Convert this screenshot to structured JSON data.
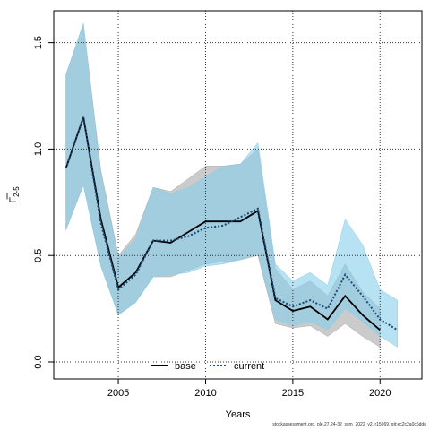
{
  "chart_data": {
    "type": "line",
    "title": "",
    "xlabel": "Years",
    "ylabel_main": "F",
    "ylabel_sub": "2-5",
    "xlim": [
      2001.3,
      2022.4
    ],
    "ylim": [
      -0.08,
      1.65
    ],
    "xticks": [
      2005,
      2010,
      2015,
      2020
    ],
    "yticks": [
      0.0,
      0.5,
      1.0,
      1.5
    ],
    "ytick_labels": [
      "0.0",
      "0.5",
      "1.0",
      "1.5"
    ],
    "grid": true,
    "legend_position": "bottom-left",
    "series": [
      {
        "name": "base",
        "color": "#000000",
        "band_color": "#a9a9a9",
        "line_style": "solid",
        "x": [
          2002,
          2003,
          2004,
          2005,
          2006,
          2007,
          2008,
          2009,
          2010,
          2011,
          2012,
          2013,
          2014,
          2015,
          2016,
          2017,
          2018,
          2019,
          2020
        ],
        "values": [
          0.91,
          1.15,
          0.67,
          0.35,
          0.42,
          0.57,
          0.56,
          0.61,
          0.66,
          0.66,
          0.66,
          0.71,
          0.29,
          0.24,
          0.26,
          0.2,
          0.31,
          0.22,
          0.15
        ],
        "lower": [
          0.62,
          0.83,
          0.45,
          0.22,
          0.28,
          0.4,
          0.4,
          0.43,
          0.46,
          0.47,
          0.48,
          0.5,
          0.18,
          0.16,
          0.17,
          0.12,
          0.18,
          0.12,
          0.07
        ],
        "upper": [
          1.35,
          1.59,
          0.9,
          0.5,
          0.6,
          0.82,
          0.8,
          0.86,
          0.92,
          0.92,
          0.93,
          1.0,
          0.44,
          0.34,
          0.38,
          0.31,
          0.46,
          0.33,
          0.25
        ]
      },
      {
        "name": "current",
        "color": "#1a4a7a",
        "band_color": "#87ceeb",
        "line_style": "dotted",
        "x": [
          2002,
          2003,
          2004,
          2005,
          2006,
          2007,
          2008,
          2009,
          2010,
          2011,
          2012,
          2013,
          2014,
          2015,
          2016,
          2017,
          2018,
          2019,
          2020,
          2021
        ],
        "values": [
          0.91,
          1.15,
          0.65,
          0.34,
          0.41,
          0.57,
          0.57,
          0.59,
          0.63,
          0.64,
          0.68,
          0.72,
          0.3,
          0.26,
          0.29,
          0.25,
          0.41,
          0.31,
          0.2,
          0.15
        ],
        "lower": [
          0.62,
          0.83,
          0.45,
          0.22,
          0.28,
          0.4,
          0.41,
          0.42,
          0.45,
          0.46,
          0.48,
          0.51,
          0.2,
          0.17,
          0.19,
          0.15,
          0.25,
          0.19,
          0.12,
          0.07
        ],
        "upper": [
          1.35,
          1.59,
          0.88,
          0.49,
          0.58,
          0.82,
          0.79,
          0.82,
          0.87,
          0.92,
          0.93,
          1.03,
          0.46,
          0.38,
          0.42,
          0.36,
          0.67,
          0.55,
          0.34,
          0.29
        ]
      }
    ]
  },
  "footer": "stockassessment.org, ple.27.24-32_ssm_2022_v2, r15069, git:ec2c2a0c6dde"
}
